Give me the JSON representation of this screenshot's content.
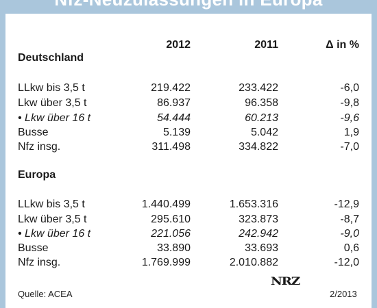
{
  "title": "Nfz-Neuzulassungen in Europa",
  "columns": [
    "2012",
    "2011",
    "Δ in %"
  ],
  "sections": [
    {
      "name": "Deutschland",
      "rows": [
        {
          "label": "LLkw bis 3,5 t",
          "v2012": "219.422",
          "v2011": "233.422",
          "delta": "-6,0",
          "italic": false
        },
        {
          "label": "Lkw über 3,5 t",
          "v2012": "86.937",
          "v2011": "96.358",
          "delta": "-9,8",
          "italic": false
        },
        {
          "label": "• Lkw über 16 t",
          "v2012": "54.444",
          "v2011": "60.213",
          "delta": "-9,6",
          "italic": true
        },
        {
          "label": "Busse",
          "v2012": "5.139",
          "v2011": "5.042",
          "delta": "1,9",
          "italic": false
        },
        {
          "label": "Nfz insg.",
          "v2012": "311.498",
          "v2011": "334.822",
          "delta": "-7,0",
          "italic": false
        }
      ]
    },
    {
      "name": "Europa",
      "rows": [
        {
          "label": "LLkw bis 3,5 t",
          "v2012": "1.440.499",
          "v2011": "1.653.316",
          "delta": "-12,9",
          "italic": false
        },
        {
          "label": "Lkw über 3,5 t",
          "v2012": "295.610",
          "v2011": "323.873",
          "delta": "-8,7",
          "italic": false
        },
        {
          "label": "• Lkw über 16 t",
          "v2012": "221.056",
          "v2011": "242.942",
          "delta": "-9,0",
          "italic": true
        },
        {
          "label": "Busse",
          "v2012": "33.890",
          "v2011": "33.693",
          "delta": "0,6",
          "italic": false
        },
        {
          "label": "Nfz insg.",
          "v2012": "1.769.999",
          "v2011": "2.010.882",
          "delta": "-12,0",
          "italic": false
        }
      ]
    }
  ],
  "footer": {
    "source": "Quelle: ACEA",
    "logo": "NRZ",
    "date": "2/2013"
  }
}
